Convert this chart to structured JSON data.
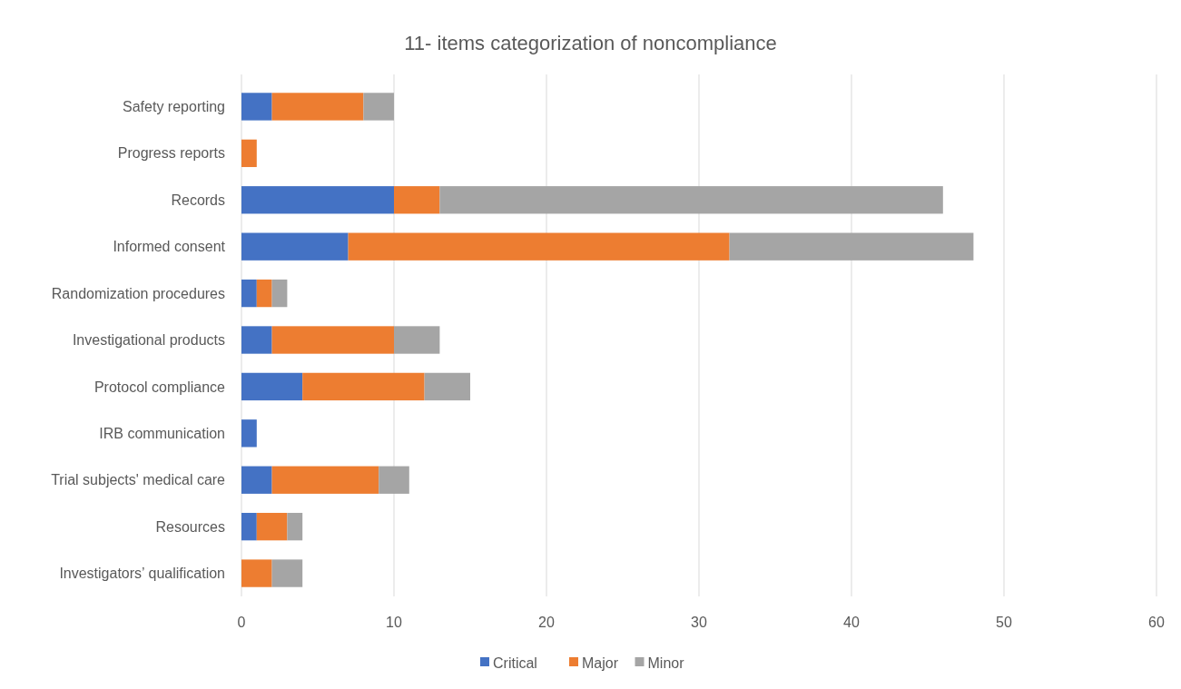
{
  "chart_data": {
    "type": "bar",
    "orientation": "horizontal",
    "stacked": true,
    "title": "11- items categorization of noncompliance",
    "categories": [
      "Safety reporting",
      "Progress reports",
      "Records",
      "Informed consent",
      "Randomization procedures",
      "Investigational products",
      "Protocol compliance",
      "IRB communication",
      "Trial subjects' medical care",
      "Resources",
      "Investigators’ qualification"
    ],
    "series": [
      {
        "name": "Critical",
        "color": "#4472c4",
        "values": [
          2,
          0,
          10,
          7,
          1,
          2,
          4,
          1,
          2,
          1,
          0
        ]
      },
      {
        "name": "Major",
        "color": "#ed7d31",
        "values": [
          6,
          1,
          3,
          25,
          1,
          8,
          8,
          0,
          7,
          2,
          2
        ]
      },
      {
        "name": "Minor",
        "color": "#a5a5a5",
        "values": [
          2,
          0,
          33,
          16,
          1,
          3,
          3,
          0,
          2,
          1,
          2
        ]
      }
    ],
    "xlim": [
      0,
      60
    ],
    "xticks": [
      0,
      10,
      20,
      30,
      40,
      50,
      60
    ],
    "grid": "x",
    "legend": "bottom"
  }
}
